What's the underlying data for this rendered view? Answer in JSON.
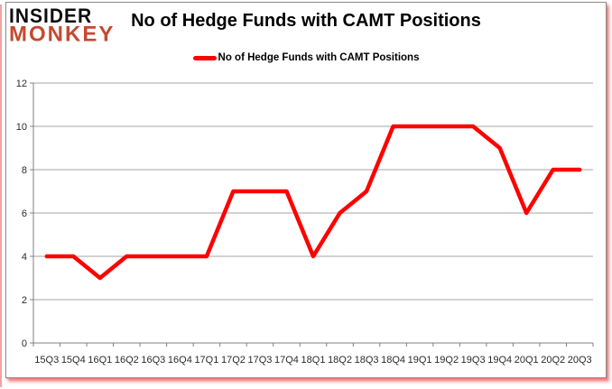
{
  "logo": {
    "line1": "INSIDER",
    "line2": "MONKEY"
  },
  "header": {
    "title": "No of Hedge Funds with CAMT Positions"
  },
  "legend": {
    "label": "No of Hedge Funds with CAMT Positions"
  },
  "chart_data": {
    "type": "line",
    "title": "No of Hedge Funds with CAMT Positions",
    "categories": [
      "15Q3",
      "15Q4",
      "16Q1",
      "16Q2",
      "16Q3",
      "16Q4",
      "17Q1",
      "17Q2",
      "17Q3",
      "17Q4",
      "18Q1",
      "18Q2",
      "18Q3",
      "18Q4",
      "19Q1",
      "19Q2",
      "19Q3",
      "19Q4",
      "20Q1",
      "20Q2",
      "20Q3"
    ],
    "series": [
      {
        "name": "No of Hedge Funds with CAMT Positions",
        "color": "#ff0000",
        "values": [
          4,
          4,
          3,
          4,
          4,
          4,
          4,
          7,
          7,
          7,
          4,
          6,
          7,
          10,
          10,
          10,
          10,
          9,
          6,
          8,
          8
        ]
      }
    ],
    "xlabel": "",
    "ylabel": "",
    "ylim": [
      0,
      12
    ],
    "ytick_interval": 2,
    "grid": true,
    "legend_position": "top-center"
  },
  "colors": {
    "line": "#ff0000",
    "grid": "#a6a6a6",
    "axis": "#808080",
    "tick_label": "#2b2b2b",
    "title": "#000000",
    "logo_insider": "#0d0d0d",
    "logo_monkey": "#c5492f",
    "card_border": "#8c8c8c",
    "glow": "#e53935",
    "left_accent": "#f2a2a2"
  }
}
